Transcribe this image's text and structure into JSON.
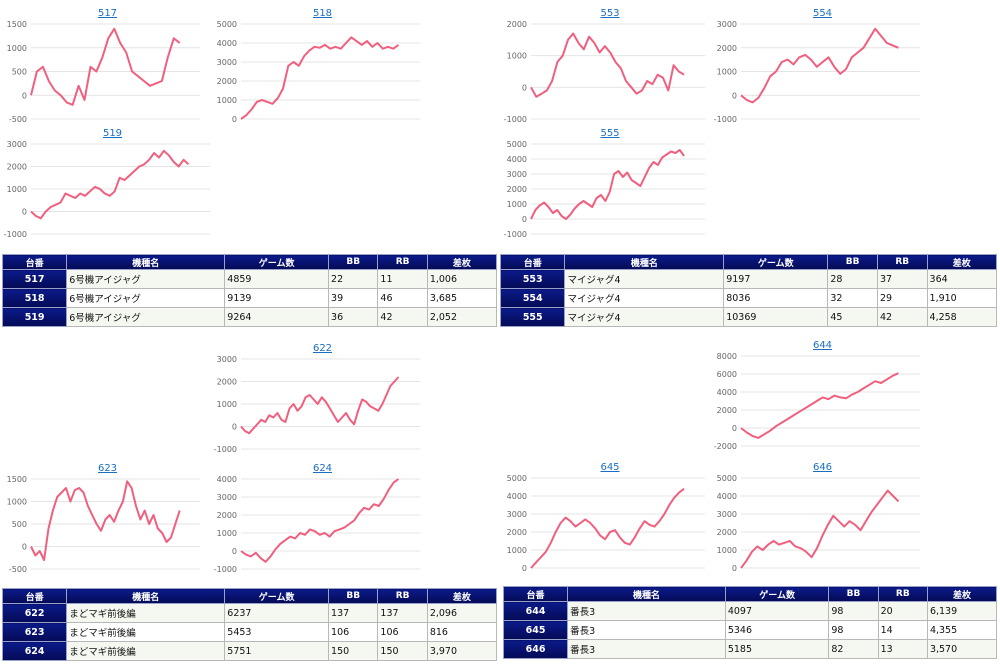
{
  "colors": {
    "line": "#f0607e",
    "header": "#0b1a8a",
    "link": "#1a6fc0"
  },
  "charts": [
    {
      "title": "517",
      "yticks": [
        "1500",
        "1000",
        "500",
        "0",
        "-500"
      ],
      "ymin": -500,
      "ymax": 1500,
      "values": [
        0,
        500,
        600,
        300,
        100,
        0,
        -150,
        -200,
        200,
        -100,
        600,
        500,
        800,
        1200,
        1400,
        1100,
        900,
        500,
        400,
        300,
        200,
        250,
        300,
        800,
        1200,
        1100
      ]
    },
    {
      "title": "518",
      "yticks": [
        "5000",
        "4000",
        "3000",
        "2000",
        "1000",
        "0"
      ],
      "ymin": 0,
      "ymax": 5000,
      "values": [
        0,
        200,
        500,
        900,
        1000,
        900,
        800,
        1100,
        1600,
        2800,
        3000,
        2800,
        3300,
        3600,
        3800,
        3750,
        3900,
        3700,
        3800,
        3700,
        4000,
        4300,
        4100,
        3900,
        4100,
        3800,
        4000,
        3700,
        3800,
        3700,
        3900
      ]
    },
    {
      "title": "519",
      "yticks": [
        "3000",
        "2000",
        "1000",
        "0",
        "-1000"
      ],
      "ymin": -1000,
      "ymax": 3000,
      "values": [
        0,
        -200,
        -300,
        0,
        200,
        300,
        400,
        800,
        700,
        600,
        800,
        700,
        900,
        1100,
        1000,
        800,
        700,
        900,
        1500,
        1400,
        1600,
        1800,
        2000,
        2100,
        2300,
        2600,
        2400,
        2700,
        2500,
        2200,
        2000,
        2300,
        2100
      ]
    },
    {
      "title": "553",
      "yticks": [
        "2000",
        "1000",
        "0",
        "-1000"
      ],
      "ymin": -1000,
      "ymax": 2000,
      "values": [
        0,
        -300,
        -200,
        -100,
        200,
        800,
        1000,
        1500,
        1700,
        1400,
        1200,
        1600,
        1400,
        1100,
        1300,
        1100,
        800,
        600,
        200,
        0,
        -200,
        -100,
        200,
        100,
        400,
        300,
        -100,
        700,
        500,
        400
      ]
    },
    {
      "title": "554",
      "yticks": [
        "3000",
        "2000",
        "1000",
        "0",
        "-1000"
      ],
      "ymin": -1000,
      "ymax": 3000,
      "values": [
        0,
        -200,
        -300,
        -100,
        300,
        800,
        1000,
        1400,
        1500,
        1300,
        1600,
        1700,
        1500,
        1200,
        1400,
        1600,
        1200,
        900,
        1100,
        1600,
        1800,
        2000,
        2400,
        2800,
        2500,
        2200,
        2100,
        2000
      ]
    },
    {
      "title": "555",
      "yticks": [
        "5000",
        "4000",
        "3000",
        "2000",
        "1000",
        "0",
        "-1000"
      ],
      "ymin": -1000,
      "ymax": 5000,
      "values": [
        0,
        600,
        900,
        1100,
        800,
        400,
        600,
        200,
        0,
        300,
        700,
        1000,
        1200,
        1000,
        800,
        1400,
        1600,
        1200,
        1800,
        3000,
        3200,
        2800,
        3100,
        2600,
        2400,
        2200,
        2800,
        3400,
        3800,
        3600,
        4100,
        4300,
        4500,
        4400,
        4600,
        4200
      ]
    },
    {
      "title": "622",
      "yticks": [
        "3000",
        "2000",
        "1000",
        "0",
        "-1000"
      ],
      "ymin": -1000,
      "ymax": 3000,
      "values": [
        0,
        -200,
        -300,
        -100,
        100,
        300,
        200,
        500,
        400,
        600,
        300,
        200,
        800,
        1000,
        700,
        900,
        1300,
        1400,
        1200,
        1000,
        1300,
        1100,
        800,
        500,
        200,
        400,
        600,
        300,
        100,
        700,
        1200,
        1100,
        900,
        800,
        700,
        1000,
        1400,
        1800,
        2000,
        2200
      ]
    },
    {
      "title": "623",
      "yticks": [
        "1500",
        "1000",
        "500",
        "0",
        "-500"
      ],
      "ymin": -500,
      "ymax": 1500,
      "values": [
        0,
        -200,
        -100,
        -300,
        400,
        800,
        1100,
        1200,
        1300,
        1000,
        1250,
        1300,
        1200,
        900,
        700,
        500,
        350,
        600,
        700,
        550,
        800,
        1000,
        1450,
        1300,
        900,
        600,
        800,
        500,
        700,
        400,
        300,
        100,
        200,
        500,
        800
      ]
    },
    {
      "title": "624",
      "yticks": [
        "4000",
        "3000",
        "2000",
        "1000",
        "0",
        "-1000"
      ],
      "ymin": -1000,
      "ymax": 4000,
      "values": [
        0,
        -200,
        -300,
        -100,
        -400,
        -600,
        -300,
        100,
        400,
        600,
        800,
        700,
        1000,
        900,
        1200,
        1100,
        900,
        1000,
        800,
        1100,
        1200,
        1300,
        1500,
        1700,
        2100,
        2400,
        2300,
        2600,
        2500,
        2900,
        3400,
        3800,
        4000
      ]
    },
    {
      "title": "644",
      "yticks": [
        "8000",
        "6000",
        "4000",
        "2000",
        "0",
        "-2000"
      ],
      "ymin": -2000,
      "ymax": 8000,
      "values": [
        0,
        -500,
        -900,
        -1100,
        -700,
        -300,
        200,
        600,
        1000,
        1400,
        1800,
        2200,
        2600,
        3000,
        3400,
        3200,
        3600,
        3400,
        3300,
        3700,
        4000,
        4400,
        4800,
        5200,
        5000,
        5400,
        5800,
        6100
      ]
    },
    {
      "title": "645",
      "yticks": [
        "5000",
        "4000",
        "3000",
        "2000",
        "1000",
        "0"
      ],
      "ymin": 0,
      "ymax": 5000,
      "values": [
        0,
        300,
        600,
        900,
        1400,
        2000,
        2500,
        2800,
        2600,
        2300,
        2500,
        2700,
        2500,
        2200,
        1800,
        1600,
        2000,
        2100,
        1700,
        1400,
        1300,
        1700,
        2200,
        2600,
        2400,
        2300,
        2600,
        3000,
        3500,
        3900,
        4200,
        4400
      ]
    },
    {
      "title": "646",
      "yticks": [
        "5000",
        "4000",
        "3000",
        "2000",
        "1000",
        "0"
      ],
      "ymin": 0,
      "ymax": 5000,
      "values": [
        0,
        400,
        900,
        1200,
        1000,
        1300,
        1500,
        1300,
        1400,
        1500,
        1200,
        1100,
        900,
        600,
        1100,
        1800,
        2400,
        2900,
        2600,
        2300,
        2600,
        2400,
        2100,
        2600,
        3100,
        3500,
        3900,
        4300,
        4000,
        3700
      ]
    }
  ],
  "table_headers": [
    "台番",
    "機種名",
    "ゲーム数",
    "BB",
    "RB",
    "差枚"
  ],
  "tables": [
    {
      "rows": [
        [
          "517",
          "6号機アイジャグ",
          "4859",
          "22",
          "11",
          "1,006"
        ],
        [
          "518",
          "6号機アイジャグ",
          "9139",
          "39",
          "46",
          "3,685"
        ],
        [
          "519",
          "6号機アイジャグ",
          "9264",
          "36",
          "42",
          "2,052"
        ]
      ]
    },
    {
      "rows": [
        [
          "553",
          "マイジャグ4",
          "9197",
          "28",
          "37",
          "364"
        ],
        [
          "554",
          "マイジャグ4",
          "8036",
          "32",
          "29",
          "1,910"
        ],
        [
          "555",
          "マイジャグ4",
          "10369",
          "45",
          "42",
          "4,258"
        ]
      ]
    },
    {
      "rows": [
        [
          "622",
          "まどマギ前後編",
          "6237",
          "137",
          "137",
          "2,096"
        ],
        [
          "623",
          "まどマギ前後編",
          "5453",
          "106",
          "106",
          "816"
        ],
        [
          "624",
          "まどマギ前後編",
          "5751",
          "150",
          "150",
          "3,970"
        ]
      ]
    },
    {
      "rows": [
        [
          "644",
          "番長3",
          "4097",
          "98",
          "20",
          "6,139"
        ],
        [
          "645",
          "番長3",
          "5346",
          "98",
          "14",
          "4,355"
        ],
        [
          "646",
          "番長3",
          "5185",
          "82",
          "13",
          "3,570"
        ]
      ]
    }
  ]
}
